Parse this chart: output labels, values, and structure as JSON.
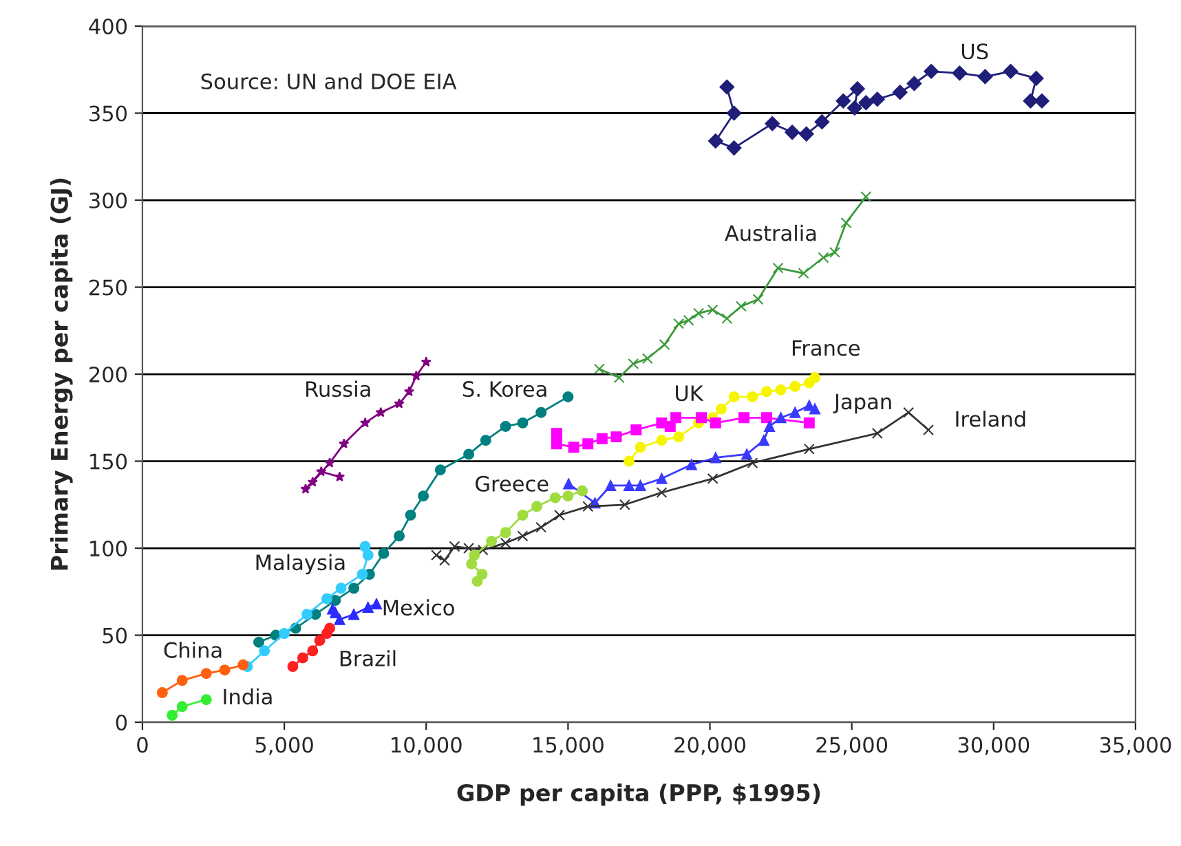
{
  "chart_data": {
    "type": "line",
    "xlabel": "GDP per capita (PPP, $1995)",
    "ylabel": "Primary Energy per capita (GJ)",
    "annotations": [
      "Source: UN and DOE EIA"
    ],
    "xlim": [
      0,
      35000
    ],
    "ylim": [
      0,
      400
    ],
    "xticks": [
      0,
      {
        "value": 5000,
        "label": "5,000"
      },
      {
        "value": 10000,
        "label": "10,000"
      },
      {
        "value": 15000,
        "label": "15,000"
      },
      {
        "value": 20000,
        "label": "20,000"
      },
      {
        "value": 25000,
        "label": "25,000"
      },
      {
        "value": 30000,
        "label": "30,000"
      },
      {
        "value": 35000,
        "label": "35,000"
      }
    ],
    "yticks": [
      0,
      50,
      100,
      150,
      200,
      250,
      300,
      350,
      400
    ],
    "grid": "y",
    "legend": false,
    "series": [
      {
        "name": "US",
        "color": "#1f1f7a",
        "marker": "diamond",
        "x": [
          20600,
          20850,
          20200,
          20850,
          22200,
          22900,
          23400,
          23950,
          24700,
          25200,
          25100,
          25500,
          25900,
          26700,
          27200,
          27800,
          28800,
          29700,
          30600,
          31500,
          31300,
          31700
        ],
        "values": [
          365,
          350,
          334,
          330,
          344,
          339,
          338,
          345,
          357,
          364,
          353,
          356,
          358,
          362,
          367,
          374,
          373,
          371,
          374,
          370,
          357,
          357
        ]
      },
      {
        "name": "Australia",
        "color": "#3a9a3a",
        "marker": "cross",
        "x": [
          16100,
          16800,
          17300,
          17800,
          18400,
          18900,
          19250,
          19600,
          20100,
          20600,
          21100,
          21700,
          22400,
          23300,
          24000,
          24400,
          24800,
          25500
        ],
        "values": [
          203,
          198,
          206,
          209,
          217,
          229,
          231,
          235,
          237,
          232,
          239,
          243,
          261,
          258,
          267,
          270,
          287,
          302
        ]
      },
      {
        "name": "France",
        "color": "#f5f500",
        "marker": "circle",
        "x": [
          17150,
          17550,
          18300,
          18900,
          19600,
          20100,
          20400,
          20850,
          21500,
          22000,
          22500,
          23000,
          23500,
          23700
        ],
        "values": [
          150,
          158,
          162,
          164,
          172,
          175,
          180,
          187,
          187,
          190,
          191,
          193,
          195,
          198
        ]
      },
      {
        "name": "UK",
        "color": "#ff00ff",
        "marker": "square",
        "x": [
          14600,
          14600,
          15200,
          15700,
          16200,
          16700,
          17400,
          18300,
          18600,
          18800,
          19700,
          20200,
          21200,
          22000,
          23500
        ],
        "values": [
          166,
          160,
          158,
          160,
          163,
          164,
          168,
          172,
          170,
          175,
          175,
          172,
          175,
          175,
          172
        ]
      },
      {
        "name": "Japan",
        "color": "#3a3aff",
        "marker": "triangle",
        "x": [
          15020,
          15950,
          16500,
          17150,
          17550,
          18300,
          19350,
          20200,
          21300,
          21900,
          22100,
          22500,
          23000,
          23500,
          23700
        ],
        "values": [
          137,
          126,
          136,
          136,
          136,
          140,
          148,
          152,
          154,
          162,
          170,
          175,
          178,
          182,
          180
        ]
      },
      {
        "name": "Ireland",
        "color": "#333333",
        "marker": "cross",
        "x": [
          10360,
          10650,
          11000,
          11500,
          12000,
          12800,
          13400,
          14050,
          14700,
          15700,
          17000,
          18300,
          20100,
          21500,
          23500,
          25900,
          27000,
          27700
        ],
        "values": [
          96,
          93,
          101,
          100,
          99,
          103,
          107,
          112,
          119,
          124,
          125,
          132,
          140,
          149,
          157,
          166,
          178,
          168
        ]
      },
      {
        "name": "Russia",
        "color": "#800080",
        "marker": "star",
        "x": [
          6950,
          6300,
          5750,
          6000,
          6600,
          7100,
          7850,
          8400,
          9050,
          9400,
          9650,
          10000
        ],
        "values": [
          141,
          144,
          134,
          138,
          149,
          160,
          172,
          178,
          183,
          190,
          199,
          207
        ]
      },
      {
        "name": "S. Korea",
        "color": "#008080",
        "marker": "circle",
        "x": [
          4100,
          4700,
          5400,
          6100,
          6800,
          7450,
          8000,
          8500,
          9050,
          9450,
          9900,
          10500,
          11500,
          12100,
          12800,
          13400,
          14050,
          15000
        ],
        "values": [
          46,
          50,
          54,
          62,
          70,
          77,
          85,
          97,
          107,
          119,
          130,
          145,
          154,
          162,
          170,
          172,
          178,
          187
        ]
      },
      {
        "name": "Greece",
        "color": "#a0dc40",
        "marker": "circle",
        "x": [
          11800,
          11970,
          11600,
          11700,
          12300,
          12800,
          13400,
          13900,
          14550,
          15000,
          15500
        ],
        "values": [
          81,
          85,
          91,
          96,
          104,
          109,
          119,
          124,
          129,
          130,
          133
        ]
      },
      {
        "name": "Malaysia",
        "color": "#33ccff",
        "marker": "circle",
        "x": [
          3700,
          4300,
          5000,
          5800,
          6500,
          7000,
          7750,
          7950,
          7850
        ],
        "values": [
          32,
          41,
          51,
          62,
          71,
          77,
          85,
          96,
          101
        ]
      },
      {
        "name": "Mexico",
        "color": "#2b2bff",
        "marker": "triangle",
        "x": [
          6700,
          6800,
          6950,
          7450,
          7950,
          8250
        ],
        "values": [
          65,
          63,
          59,
          62,
          66,
          68
        ]
      },
      {
        "name": "Brazil",
        "color": "#ff2020",
        "marker": "circle",
        "x": [
          5300,
          5650,
          6000,
          6250,
          6500,
          6600
        ],
        "values": [
          32,
          37,
          41,
          47,
          51,
          54
        ]
      },
      {
        "name": "China",
        "color": "#ff6010",
        "marker": "circle",
        "x": [
          700,
          1400,
          2250,
          2900,
          3550
        ],
        "values": [
          17,
          24,
          28,
          30,
          33
        ]
      },
      {
        "name": "India",
        "color": "#33ee33",
        "marker": "circle",
        "x": [
          1050,
          1400,
          2250
        ],
        "values": [
          4,
          9,
          13
        ]
      }
    ]
  }
}
